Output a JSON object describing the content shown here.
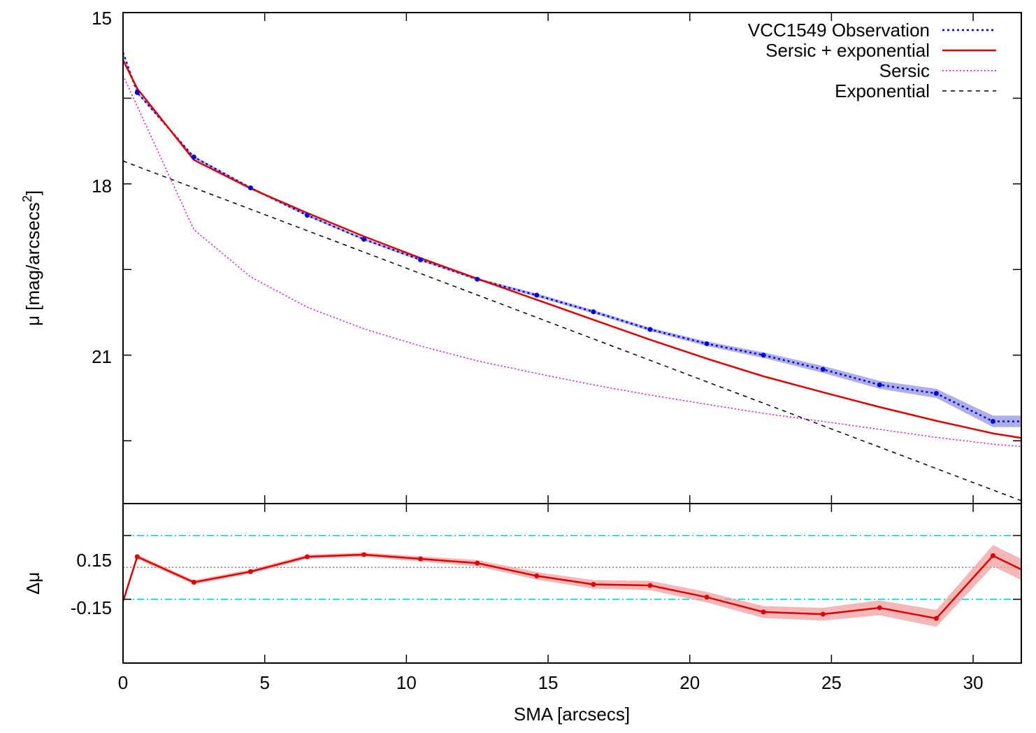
{
  "chart_data": {
    "type": "line",
    "xlabel": "SMA [arcsecs]",
    "x_ticks": [
      0,
      5,
      10,
      15,
      20,
      25,
      30
    ],
    "xlim": [
      0,
      31.7
    ],
    "top_panel": {
      "ylabel": "μ [mag/arcsecs",
      "ylabel_sup": "2",
      "ylabel_end": "]",
      "ylim": [
        15,
        23.6
      ],
      "y_inverted": true,
      "y_ticks": [
        "15",
        "18",
        "21"
      ],
      "legend_position": "top-right",
      "series": [
        {
          "name": "VCC1549 Observation",
          "color": "#0000e0",
          "band_color": "#6b6bd6",
          "style": "dotted-with-points",
          "x": [
            0.0,
            0.5,
            2.5,
            4.5,
            6.5,
            8.5,
            10.5,
            12.5,
            14.6,
            16.6,
            18.6,
            20.6,
            22.6,
            24.7,
            26.7,
            28.7,
            30.7,
            31.7
          ],
          "y": [
            15.7,
            16.4,
            17.53,
            18.07,
            18.55,
            18.97,
            19.33,
            19.67,
            19.95,
            20.24,
            20.55,
            20.8,
            21.0,
            21.25,
            21.52,
            21.67,
            22.16,
            22.16
          ],
          "err": [
            0.02,
            0.02,
            0.02,
            0.02,
            0.02,
            0.02,
            0.02,
            0.02,
            0.03,
            0.03,
            0.03,
            0.04,
            0.05,
            0.06,
            0.07,
            0.08,
            0.1,
            0.1
          ]
        },
        {
          "name": "Sersic + exponential",
          "color": "#e00000",
          "style": "solid",
          "x": [
            0.0,
            0.5,
            2.5,
            4.5,
            6.5,
            8.5,
            10.5,
            12.5,
            14.6,
            16.6,
            18.6,
            20.6,
            22.6,
            24.7,
            26.7,
            28.7,
            30.7,
            31.7
          ],
          "y": [
            15.83,
            16.33,
            17.58,
            18.08,
            18.51,
            18.92,
            19.3,
            19.66,
            20.03,
            20.38,
            20.73,
            21.06,
            21.37,
            21.65,
            21.91,
            22.15,
            22.37,
            22.45
          ]
        },
        {
          "name": "Sersic",
          "color": "#e000e0",
          "style": "dotted",
          "x": [
            0.0,
            2.5,
            4.5,
            6.5,
            8.5,
            10.5,
            12.5,
            14.6,
            16.6,
            18.6,
            20.6,
            22.6,
            24.7,
            26.7,
            28.7,
            30.7,
            31.7
          ],
          "y": [
            16.1,
            18.8,
            19.63,
            20.16,
            20.54,
            20.84,
            21.1,
            21.32,
            21.52,
            21.7,
            21.86,
            22.02,
            22.16,
            22.3,
            22.44,
            22.56,
            22.6
          ]
        },
        {
          "name": "Exponential",
          "color": "#000000",
          "style": "dashed",
          "x": [
            0.0,
            31.7
          ],
          "y": [
            17.6,
            23.55
          ]
        }
      ]
    },
    "bottom_panel": {
      "ylabel": "Δμ",
      "ylim": [
        -0.45,
        0.3
      ],
      "y_ticks": [
        "0.15",
        "-0.15"
      ],
      "reference_lines": [
        {
          "y": 0.15,
          "color": "#00cccc",
          "style": "dash-dot"
        },
        {
          "y": 0.0,
          "color": "#555555",
          "style": "dotted"
        },
        {
          "y": -0.15,
          "color": "#00cccc",
          "style": "dash-dot"
        }
      ],
      "series": [
        {
          "name": "",
          "color": "#e00000",
          "band_color": "#f2a0a0",
          "x": [
            0.0,
            0.5,
            2.5,
            4.5,
            6.5,
            8.5,
            10.5,
            12.5,
            14.6,
            16.6,
            18.6,
            20.6,
            22.6,
            24.7,
            26.7,
            28.7,
            30.7,
            31.7
          ],
          "y": [
            -0.16,
            0.05,
            -0.07,
            -0.02,
            0.05,
            0.06,
            0.04,
            0.02,
            -0.04,
            -0.08,
            -0.085,
            -0.14,
            -0.21,
            -0.22,
            -0.19,
            -0.24,
            0.055,
            -0.01
          ],
          "err": [
            0.01,
            0.01,
            0.01,
            0.01,
            0.01,
            0.01,
            0.012,
            0.015,
            0.018,
            0.02,
            0.022,
            0.025,
            0.028,
            0.03,
            0.035,
            0.04,
            0.05,
            0.05
          ]
        }
      ]
    }
  }
}
